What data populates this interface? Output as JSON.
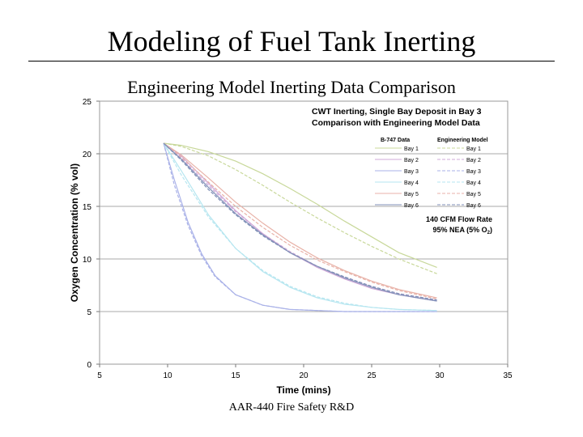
{
  "slide": {
    "title": "Modeling of Fuel Tank Inerting",
    "subtitle": "Engineering Model Inerting Data Comparison",
    "footer": "AAR-440 Fire Safety R&D"
  },
  "chart_data": {
    "type": "line",
    "title_line1": "CWT Inerting, Single Bay Deposit in Bay 3",
    "title_line2": "Comparison with Engineering Model Data",
    "xlabel": "Time (mins)",
    "ylabel": "Oxygen Concentration (% vol)",
    "xlim": [
      5,
      35
    ],
    "ylim": [
      0,
      25
    ],
    "xticks": [
      5,
      10,
      15,
      20,
      25,
      30,
      35
    ],
    "yticks": [
      0,
      5,
      10,
      15,
      20,
      25
    ],
    "grid": "horizontal",
    "legend_position": "top-right",
    "legend_headers": [
      "B-747 Data",
      "Engineering Model"
    ],
    "annotation_line1": "140 CFM Flow Rate",
    "annotation_line2_prefix": "95% NEA (5% O",
    "annotation_line2_sub": "2",
    "annotation_line2_suffix": ")",
    "series": [
      {
        "name": "Bay 1",
        "color": "#c8d89a",
        "data_x": [
          9.7,
          11,
          13,
          15,
          17,
          19,
          21,
          23,
          25,
          27,
          29.8
        ],
        "data_y": [
          21,
          20.8,
          20.2,
          19.3,
          18.1,
          16.7,
          15.2,
          13.6,
          12.1,
          10.6,
          9.2
        ],
        "model_x": [
          9.7,
          11,
          13,
          15,
          17,
          19,
          21,
          23,
          25,
          27,
          29.8
        ],
        "model_y": [
          21,
          20.7,
          19.8,
          18.5,
          17.0,
          15.4,
          13.9,
          12.5,
          11.2,
          10.0,
          8.6
        ]
      },
      {
        "name": "Bay 2",
        "color": "#cfa8d8",
        "data_x": [
          9.7,
          11,
          13,
          15,
          17,
          19,
          21,
          23,
          25,
          27,
          29.8
        ],
        "data_y": [
          21,
          19.8,
          17.2,
          14.6,
          12.4,
          10.6,
          9.2,
          8.1,
          7.2,
          6.6,
          6.0
        ],
        "model_x": [
          9.7,
          11,
          13,
          15,
          17,
          19,
          21,
          23,
          25,
          27,
          29.8
        ],
        "model_y": [
          21,
          19.6,
          17.0,
          14.5,
          12.4,
          10.7,
          9.3,
          8.3,
          7.4,
          6.7,
          6.1
        ]
      },
      {
        "name": "Bay 3",
        "color": "#aab2e8",
        "data_x": [
          9.7,
          10.5,
          11.5,
          12.5,
          13.5,
          15,
          17,
          19,
          21,
          23,
          25,
          27,
          29.8
        ],
        "data_y": [
          21,
          17.5,
          13.5,
          10.5,
          8.4,
          6.6,
          5.6,
          5.2,
          5.1,
          5.0,
          5.0,
          5.0,
          5.0
        ],
        "model_x": [
          9.7,
          10.5,
          11.5,
          12.5,
          13.5,
          15,
          17,
          19,
          21,
          23,
          25,
          27,
          29.8
        ],
        "model_y": [
          21,
          17.0,
          13.2,
          10.3,
          8.3,
          6.6,
          5.6,
          5.2,
          5.1,
          5.0,
          5.0,
          5.0,
          5.0
        ]
      },
      {
        "name": "Bay 4",
        "color": "#b6e6f0",
        "data_x": [
          9.7,
          11,
          13,
          15,
          17,
          19,
          21,
          23,
          25,
          27,
          29.8
        ],
        "data_y": [
          21,
          18.4,
          14.2,
          11.0,
          8.8,
          7.3,
          6.3,
          5.7,
          5.4,
          5.2,
          5.1
        ],
        "model_x": [
          9.7,
          11,
          13,
          15,
          17,
          19,
          21,
          23,
          25,
          27,
          29.8
        ],
        "model_y": [
          21,
          18.0,
          14.0,
          11.0,
          8.9,
          7.4,
          6.4,
          5.8,
          5.4,
          5.2,
          5.1
        ]
      },
      {
        "name": "Bay 5",
        "color": "#e8b2a8",
        "data_x": [
          9.7,
          11,
          13,
          15,
          17,
          19,
          21,
          23,
          25,
          27,
          29.8
        ],
        "data_y": [
          21,
          19.9,
          17.7,
          15.4,
          13.4,
          11.6,
          10.1,
          8.9,
          7.9,
          7.1,
          6.3
        ],
        "model_x": [
          9.7,
          11,
          13,
          15,
          17,
          19,
          21,
          23,
          25,
          27,
          29.8
        ],
        "model_y": [
          21,
          19.7,
          17.3,
          15.0,
          13.0,
          11.3,
          9.9,
          8.8,
          7.8,
          7.0,
          6.2
        ]
      },
      {
        "name": "Bay 6",
        "color": "#8090b8",
        "data_x": [
          9.7,
          11,
          13,
          15,
          17,
          19,
          21,
          23,
          25,
          27,
          29.8
        ],
        "data_y": [
          21,
          19.5,
          16.8,
          14.3,
          12.3,
          10.6,
          9.3,
          8.2,
          7.3,
          6.6,
          6.0
        ],
        "model_x": [
          9.7,
          11,
          13,
          15,
          17,
          19,
          21,
          23,
          25,
          27,
          29.8
        ],
        "model_y": [
          21,
          19.4,
          16.6,
          14.2,
          12.2,
          10.6,
          9.3,
          8.3,
          7.4,
          6.7,
          6.1
        ]
      }
    ]
  }
}
